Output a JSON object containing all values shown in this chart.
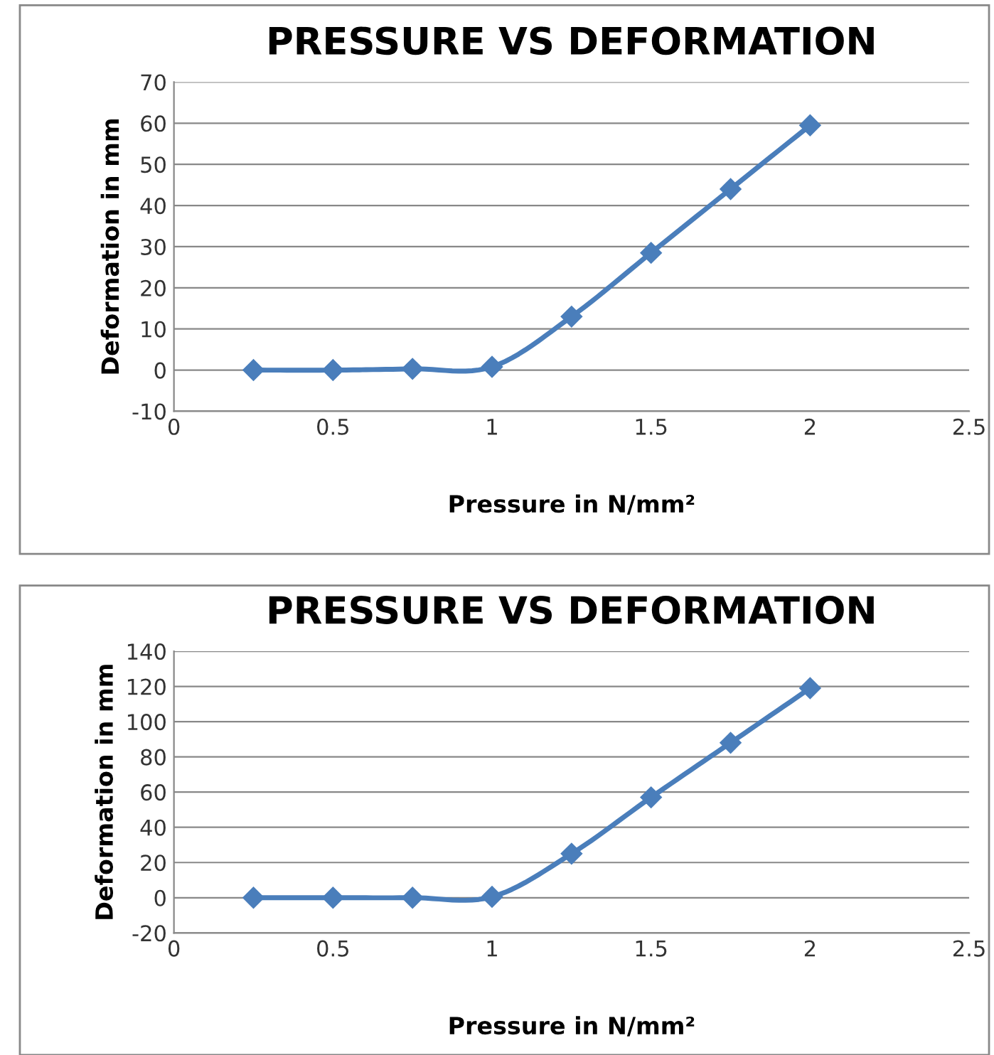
{
  "chart_data": [
    {
      "type": "line",
      "title": "PRESSURE VS DEFORMATION",
      "xlabel": "Pressure in N/mm²",
      "ylabel": "Deformation in mm",
      "x": [
        0.25,
        0.5,
        0.75,
        1,
        1.25,
        1.5,
        1.75,
        2
      ],
      "series": [
        {
          "color": "#4a7ebb",
          "values": [
            0,
            0,
            0.3,
            0.8,
            13,
            28.5,
            44,
            59.5
          ]
        }
      ],
      "xlim": [
        0,
        2.5
      ],
      "xticks": [
        0,
        0.5,
        1,
        1.5,
        2,
        2.5
      ],
      "ylim": [
        -10,
        70
      ],
      "yticks": [
        -10,
        0,
        10,
        20,
        30,
        40,
        50,
        60,
        70
      ],
      "grid": "y",
      "marker": "diamond",
      "line_style": "solid"
    },
    {
      "type": "line",
      "title": "PRESSURE VS DEFORMATION",
      "xlabel": "Pressure in N/mm²",
      "ylabel": "Deformation in mm",
      "x": [
        0.25,
        0.5,
        0.75,
        1,
        1.25,
        1.5,
        1.75,
        2
      ],
      "series": [
        {
          "color": "#4a7ebb",
          "values": [
            0,
            0,
            0,
            0.5,
            25,
            57,
            88,
            119
          ]
        }
      ],
      "xlim": [
        0,
        2.5
      ],
      "xticks": [
        0,
        0.5,
        1,
        1.5,
        2,
        2.5
      ],
      "ylim": [
        -20,
        140
      ],
      "yticks": [
        -20,
        0,
        20,
        40,
        60,
        80,
        100,
        120,
        140
      ],
      "grid": "y",
      "marker": "diamond",
      "line_style": "solid"
    }
  ]
}
